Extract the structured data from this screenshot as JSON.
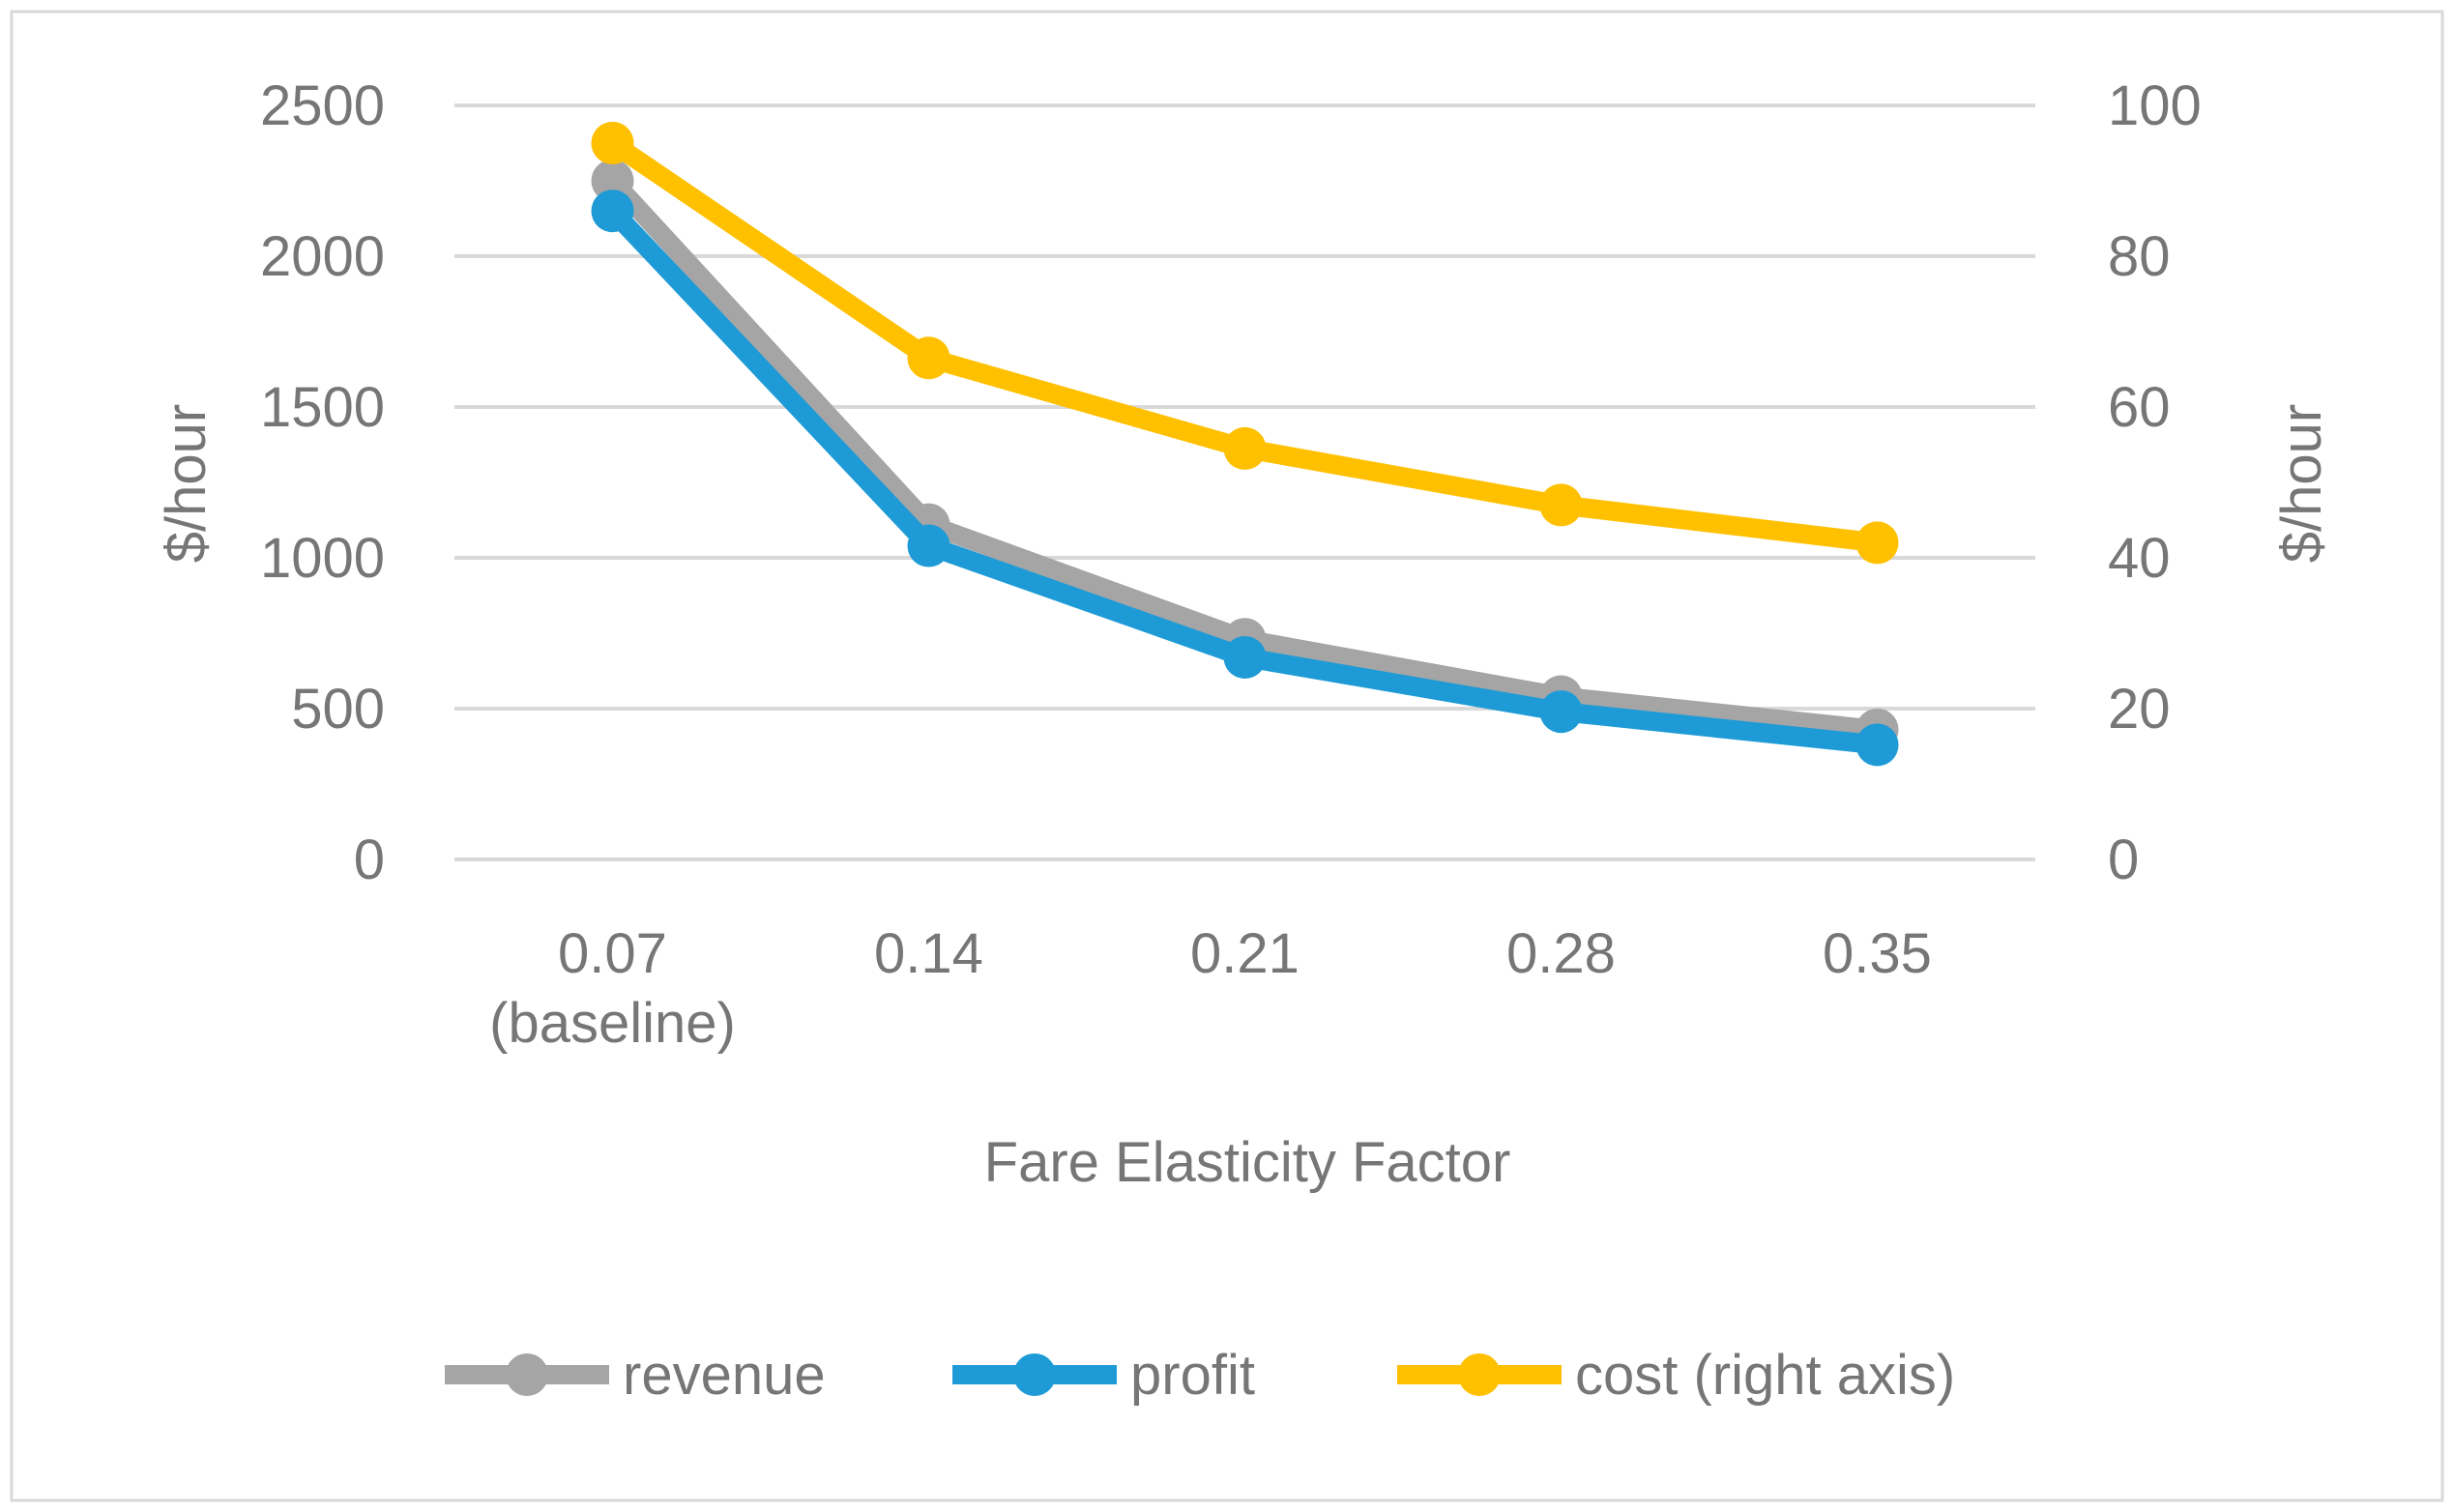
{
  "chart_data": {
    "type": "line",
    "categories": [
      [
        "0.07",
        "(baseline)"
      ],
      [
        "0.14"
      ],
      [
        "0.21"
      ],
      [
        "0.28"
      ],
      [
        "0.35"
      ]
    ],
    "xlabel": "Fare Elasticity Factor",
    "ylabel_left": "$/hour",
    "ylabel_right": "$/hour",
    "ylim_left": [
      0,
      2500
    ],
    "ylim_right": [
      0,
      100
    ],
    "yticks_left": [
      0,
      500,
      1000,
      1500,
      2000,
      2500
    ],
    "yticks_right": [
      0,
      20,
      40,
      60,
      80,
      100
    ],
    "grid": true,
    "legend_position": "bottom",
    "series": [
      {
        "name": "revenue",
        "axis": "left",
        "color": "#A5A5A5",
        "values": [
          2250,
          1110,
          730,
          540,
          430
        ]
      },
      {
        "name": "profit",
        "axis": "left",
        "color": "#1E9BD7",
        "values": [
          2150,
          1040,
          670,
          490,
          380
        ]
      },
      {
        "name": "cost (right axis)",
        "axis": "right",
        "color": "#FFC000",
        "values": [
          95,
          66.5,
          54.5,
          47,
          42
        ]
      }
    ]
  }
}
